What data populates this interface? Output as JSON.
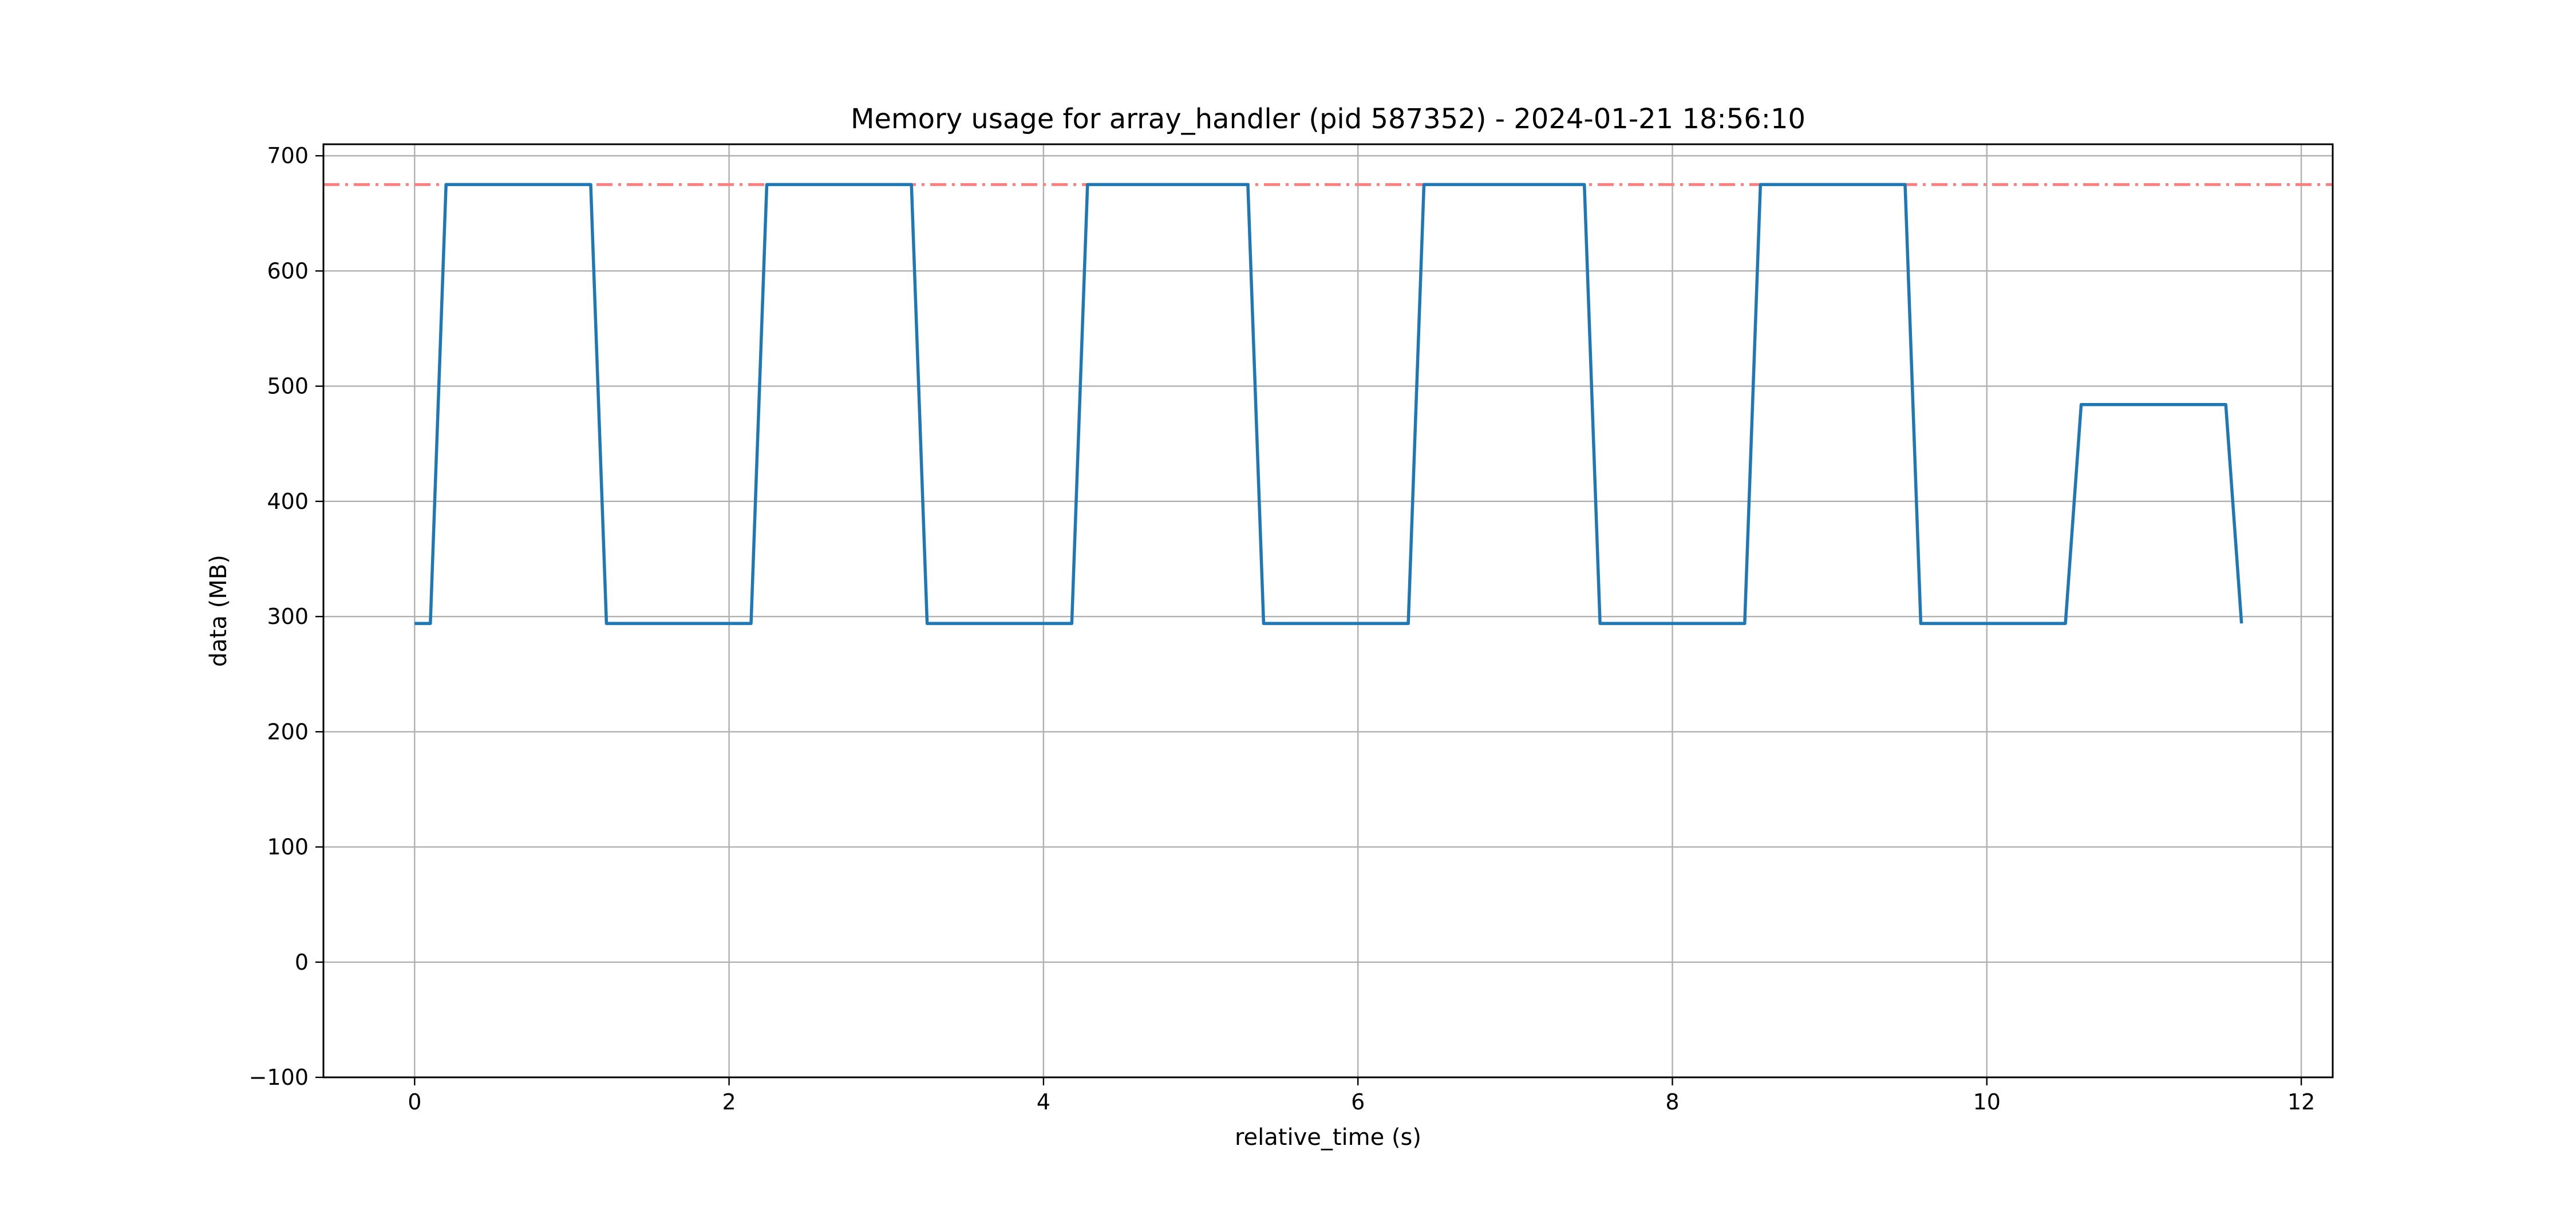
{
  "chart_data": {
    "type": "line",
    "title": "Memory usage for array_handler (pid 587352) - 2024-01-21 18:56:10",
    "xlabel": "relative_time (s)",
    "ylabel": "data (MB)",
    "xlim": [
      -0.58,
      12.2
    ],
    "ylim": [
      -100,
      710
    ],
    "xticks": [
      0,
      2,
      4,
      6,
      8,
      10,
      12
    ],
    "yticks": [
      -100,
      0,
      100,
      200,
      300,
      400,
      500,
      600,
      700
    ],
    "xtick_labels": [
      "0",
      "2",
      "4",
      "6",
      "8",
      "10",
      "12"
    ],
    "ytick_labels": [
      "−100",
      "0",
      "100",
      "200",
      "300",
      "400",
      "500",
      "600",
      "700"
    ],
    "grid": true,
    "series": [
      {
        "color": "#1f77b4",
        "style": "solid",
        "x": [
          0,
          0.1,
          0.2,
          1.12,
          1.22,
          2.14,
          2.24,
          3.16,
          3.26,
          4.18,
          4.28,
          5.3,
          5.4,
          6.32,
          6.42,
          7.44,
          7.54,
          8.46,
          8.56,
          9.48,
          9.58,
          10.5,
          10.6,
          11.52,
          11.62
        ],
        "y": [
          294,
          294,
          675,
          675,
          294,
          294,
          675,
          675,
          294,
          294,
          675,
          675,
          294,
          294,
          675,
          675,
          294,
          294,
          675,
          675,
          294,
          294,
          484,
          484,
          294
        ]
      }
    ],
    "reference_lines": [
      {
        "orientation": "horizontal",
        "y": 675,
        "color": "#ff7f7f",
        "style": "dashdot"
      }
    ]
  }
}
